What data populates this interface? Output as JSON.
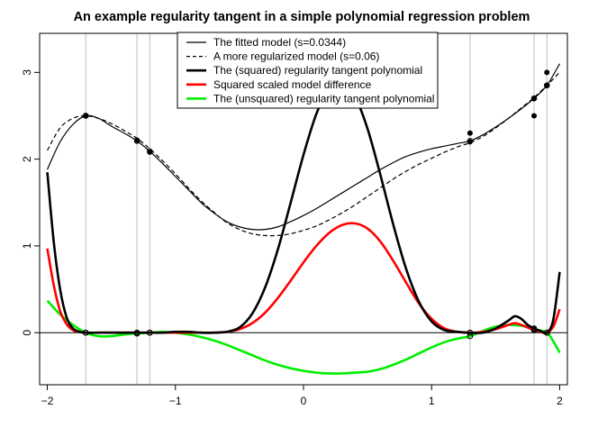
{
  "chart_data": {
    "type": "line",
    "title": "An example regularity tangent in a simple polynomial regression problem",
    "xlim": [
      -2.06,
      2.06
    ],
    "ylim": [
      -0.6,
      3.45
    ],
    "x_ticks": [
      -2,
      -1,
      0,
      1,
      2
    ],
    "x_tick_labels": [
      "−2",
      "−1",
      "0",
      "1",
      "2"
    ],
    "y_ticks": [
      0,
      1,
      2,
      3
    ],
    "y_tick_labels": [
      "0",
      "1",
      "2",
      "3"
    ],
    "grid": false,
    "legend_position": "top-center",
    "reference_lines": {
      "horizontal_y": 0,
      "vertical_x": [
        -1.7,
        -1.3,
        -1.2,
        1.3,
        1.8,
        1.9
      ]
    },
    "data_points": {
      "x": [
        -1.7,
        -1.3,
        -1.2,
        1.3,
        1.3,
        1.8,
        1.8,
        1.9,
        1.9
      ],
      "y": [
        2.5,
        2.22,
        2.08,
        2.3,
        2.2,
        2.7,
        2.5,
        3.0,
        2.85
      ]
    },
    "series": [
      {
        "name": "The fitted model (s=0.0344)",
        "color": "#000000",
        "style": "solid-thin",
        "x": [
          -2.0,
          -1.9,
          -1.8,
          -1.7,
          -1.6,
          -1.5,
          -1.4,
          -1.3,
          -1.2,
          -1.1,
          -1.0,
          -0.9,
          -0.8,
          -0.7,
          -0.6,
          -0.5,
          -0.4,
          -0.3,
          -0.2,
          -0.1,
          0.0,
          0.1,
          0.2,
          0.3,
          0.4,
          0.5,
          0.6,
          0.7,
          0.8,
          0.9,
          1.0,
          1.1,
          1.2,
          1.3,
          1.4,
          1.5,
          1.6,
          1.7,
          1.8,
          1.9,
          2.0
        ],
        "y": [
          1.88,
          2.2,
          2.4,
          2.5,
          2.47,
          2.38,
          2.3,
          2.21,
          2.09,
          1.95,
          1.8,
          1.65,
          1.5,
          1.38,
          1.28,
          1.22,
          1.19,
          1.19,
          1.22,
          1.28,
          1.35,
          1.43,
          1.52,
          1.61,
          1.7,
          1.79,
          1.88,
          1.96,
          2.03,
          2.08,
          2.12,
          2.15,
          2.18,
          2.21,
          2.28,
          2.37,
          2.47,
          2.58,
          2.7,
          2.85,
          3.1
        ]
      },
      {
        "name": "A more regularized model (s=0.06)",
        "color": "#000000",
        "style": "dashed",
        "x": [
          -2.0,
          -1.9,
          -1.8,
          -1.7,
          -1.6,
          -1.5,
          -1.4,
          -1.3,
          -1.2,
          -1.1,
          -1.0,
          -0.9,
          -0.8,
          -0.7,
          -0.6,
          -0.5,
          -0.4,
          -0.3,
          -0.2,
          -0.1,
          0.0,
          0.1,
          0.2,
          0.3,
          0.4,
          0.5,
          0.6,
          0.7,
          0.8,
          0.9,
          1.0,
          1.1,
          1.2,
          1.3,
          1.4,
          1.5,
          1.6,
          1.7,
          1.8,
          1.9,
          2.0
        ],
        "y": [
          2.1,
          2.36,
          2.47,
          2.5,
          2.47,
          2.41,
          2.33,
          2.24,
          2.12,
          1.98,
          1.83,
          1.67,
          1.52,
          1.39,
          1.27,
          1.19,
          1.14,
          1.12,
          1.12,
          1.14,
          1.18,
          1.23,
          1.3,
          1.38,
          1.47,
          1.57,
          1.67,
          1.77,
          1.86,
          1.94,
          2.01,
          2.08,
          2.14,
          2.19,
          2.26,
          2.36,
          2.47,
          2.59,
          2.71,
          2.85,
          3.0
        ]
      },
      {
        "name": "The (squared) regularity tangent polynomial",
        "color": "#000000",
        "style": "solid-thick",
        "x": [
          -2.0,
          -1.95,
          -1.9,
          -1.85,
          -1.8,
          -1.75,
          -1.7,
          -1.6,
          -1.5,
          -1.4,
          -1.3,
          -1.2,
          -1.1,
          -1.0,
          -0.9,
          -0.8,
          -0.7,
          -0.6,
          -0.5,
          -0.4,
          -0.3,
          -0.2,
          -0.1,
          0.0,
          0.1,
          0.2,
          0.3,
          0.4,
          0.5,
          0.6,
          0.7,
          0.8,
          0.9,
          1.0,
          1.1,
          1.2,
          1.3,
          1.4,
          1.5,
          1.6,
          1.65,
          1.7,
          1.75,
          1.8,
          1.85,
          1.9,
          1.95,
          2.0
        ],
        "y": [
          1.85,
          1.05,
          0.5,
          0.18,
          0.05,
          0.01,
          0.0,
          0.0,
          0.0,
          0.0,
          0.0,
          0.0,
          0.0,
          0.01,
          0.01,
          0.0,
          0.0,
          0.01,
          0.06,
          0.22,
          0.52,
          0.96,
          1.5,
          2.05,
          2.52,
          2.82,
          2.9,
          2.73,
          2.35,
          1.82,
          1.25,
          0.74,
          0.36,
          0.13,
          0.03,
          0.01,
          0.0,
          0.0,
          0.05,
          0.14,
          0.19,
          0.16,
          0.09,
          0.05,
          0.02,
          0.0,
          0.15,
          0.7
        ]
      },
      {
        "name": "Squared scaled model difference",
        "color": "#ff0000",
        "style": "solid-thick",
        "x": [
          -2.0,
          -1.95,
          -1.9,
          -1.85,
          -1.8,
          -1.75,
          -1.7,
          -1.6,
          -1.5,
          -1.4,
          -1.3,
          -1.2,
          -1.1,
          -1.0,
          -0.9,
          -0.8,
          -0.7,
          -0.6,
          -0.5,
          -0.4,
          -0.3,
          -0.2,
          -0.1,
          0.0,
          0.1,
          0.2,
          0.3,
          0.4,
          0.5,
          0.6,
          0.7,
          0.8,
          0.9,
          1.0,
          1.1,
          1.2,
          1.3,
          1.4,
          1.5,
          1.6,
          1.65,
          1.7,
          1.75,
          1.8,
          1.85,
          1.9,
          1.95,
          2.0
        ],
        "y": [
          0.97,
          0.55,
          0.25,
          0.1,
          0.03,
          0.01,
          0.0,
          0.0,
          0.0,
          0.0,
          0.0,
          0.0,
          0.0,
          0.0,
          0.0,
          0.0,
          0.0,
          0.01,
          0.04,
          0.11,
          0.23,
          0.4,
          0.6,
          0.81,
          1.0,
          1.15,
          1.24,
          1.26,
          1.2,
          1.05,
          0.83,
          0.58,
          0.34,
          0.16,
          0.05,
          0.01,
          0.0,
          0.01,
          0.04,
          0.09,
          0.11,
          0.09,
          0.06,
          0.03,
          0.01,
          0.0,
          0.07,
          0.27
        ]
      },
      {
        "name": "The (unsquared) regularity tangent polynomial",
        "color": "#00ee00",
        "style": "solid-thick",
        "x": [
          -2.0,
          -1.9,
          -1.8,
          -1.7,
          -1.6,
          -1.5,
          -1.4,
          -1.3,
          -1.2,
          -1.1,
          -1.0,
          -0.9,
          -0.8,
          -0.7,
          -0.6,
          -0.5,
          -0.4,
          -0.3,
          -0.2,
          -0.1,
          0.0,
          0.1,
          0.2,
          0.3,
          0.4,
          0.5,
          0.6,
          0.7,
          0.8,
          0.9,
          1.0,
          1.1,
          1.2,
          1.3,
          1.4,
          1.5,
          1.6,
          1.7,
          1.8,
          1.9,
          1.95,
          2.0
        ],
        "y": [
          0.37,
          0.21,
          0.09,
          0.0,
          -0.04,
          -0.04,
          -0.02,
          -0.01,
          0.0,
          0.01,
          0.0,
          -0.02,
          -0.05,
          -0.09,
          -0.14,
          -0.2,
          -0.26,
          -0.32,
          -0.37,
          -0.41,
          -0.44,
          -0.46,
          -0.47,
          -0.47,
          -0.46,
          -0.45,
          -0.42,
          -0.37,
          -0.31,
          -0.24,
          -0.17,
          -0.11,
          -0.07,
          -0.04,
          0.02,
          0.07,
          0.09,
          0.08,
          0.04,
          0.0,
          -0.1,
          -0.23
        ]
      }
    ]
  }
}
